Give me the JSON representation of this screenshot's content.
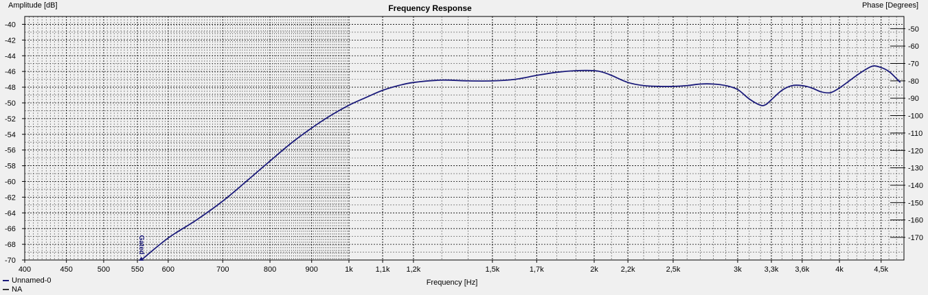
{
  "chart_data": {
    "type": "line",
    "title": "Frequency Response",
    "xlabel": "Frequency [Hz]",
    "ylabel_left": "Amplitude [dB]",
    "ylabel_right": "Phase [Degrees]",
    "x_scale": "log",
    "xlim": [
      400,
      4800
    ],
    "ylim_left": [
      -70,
      -39
    ],
    "ylim_right": [
      -183,
      -43
    ],
    "x_ticks": [
      {
        "value": 400,
        "label": "400"
      },
      {
        "value": 450,
        "label": "450"
      },
      {
        "value": 500,
        "label": "500"
      },
      {
        "value": 550,
        "label": "550"
      },
      {
        "value": 600,
        "label": "600"
      },
      {
        "value": 700,
        "label": "700"
      },
      {
        "value": 800,
        "label": "800"
      },
      {
        "value": 900,
        "label": "900"
      },
      {
        "value": 1000,
        "label": "1k"
      },
      {
        "value": 1100,
        "label": "1,1k"
      },
      {
        "value": 1200,
        "label": "1,2k"
      },
      {
        "value": 1500,
        "label": "1,5k"
      },
      {
        "value": 1700,
        "label": "1,7k"
      },
      {
        "value": 2000,
        "label": "2k"
      },
      {
        "value": 2200,
        "label": "2,2k"
      },
      {
        "value": 2500,
        "label": "2,5k"
      },
      {
        "value": 3000,
        "label": "3k"
      },
      {
        "value": 3300,
        "label": "3,3k"
      },
      {
        "value": 3600,
        "label": "3,6k"
      },
      {
        "value": 4000,
        "label": "4k"
      },
      {
        "value": 4500,
        "label": "4,5k"
      }
    ],
    "y_ticks_left": [
      "-40",
      "-42",
      "-44",
      "-46",
      "-48",
      "-50",
      "-52",
      "-54",
      "-56",
      "-58",
      "-60",
      "-62",
      "-64",
      "-66",
      "-68",
      "-70"
    ],
    "y_ticks_right": [
      "-50",
      "-60",
      "-70",
      "-80",
      "-90",
      "-100",
      "-110",
      "-120",
      "-130",
      "-140",
      "-150",
      "-160",
      "-170"
    ],
    "grid": true,
    "series": [
      {
        "name": "Unnamed-0",
        "color": "#1a1a7a",
        "x": [
          556,
          600,
          650,
          700,
          750,
          800,
          850,
          900,
          950,
          1000,
          1050,
          1100,
          1150,
          1200,
          1300,
          1400,
          1500,
          1600,
          1700,
          1800,
          1900,
          2000,
          2050,
          2100,
          2200,
          2300,
          2400,
          2500,
          2600,
          2700,
          2800,
          2900,
          3000,
          3100,
          3200,
          3250,
          3300,
          3400,
          3500,
          3600,
          3700,
          3800,
          3900,
          4000,
          4100,
          4200,
          4300,
          4400,
          4500,
          4600,
          4700,
          4750
        ],
        "y": [
          -70.0,
          -67.2,
          -64.9,
          -62.5,
          -59.9,
          -57.4,
          -55.1,
          -53.2,
          -51.6,
          -50.3,
          -49.3,
          -48.4,
          -47.8,
          -47.4,
          -47.1,
          -47.2,
          -47.2,
          -47.0,
          -46.5,
          -46.1,
          -45.9,
          -45.9,
          -46.1,
          -46.5,
          -47.4,
          -47.8,
          -47.9,
          -47.9,
          -47.8,
          -47.6,
          -47.6,
          -47.8,
          -48.3,
          -49.5,
          -50.3,
          -50.2,
          -49.6,
          -48.4,
          -47.8,
          -47.8,
          -48.1,
          -48.6,
          -48.7,
          -48.1,
          -47.3,
          -46.5,
          -45.8,
          -45.3,
          -45.5,
          -46.0,
          -46.9,
          -47.4
        ]
      },
      {
        "name": "NA",
        "color": "#333333",
        "x": [],
        "y": []
      }
    ],
    "annotations": [
      {
        "text": "Gated",
        "x": 556,
        "y": -70,
        "rotation": 90,
        "color": "#1a1a7a"
      }
    ]
  }
}
